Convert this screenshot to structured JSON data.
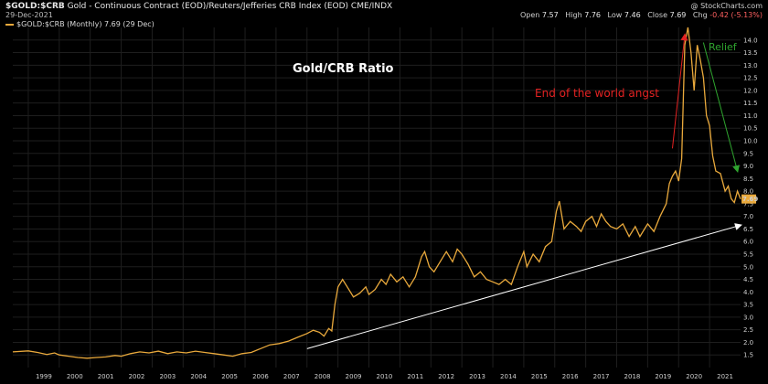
{
  "header": {
    "symbol": "$GOLD:$CRB",
    "description": "Gold - Continuous Contract (EOD)/Reuters/Jefferies CRB Index (EOD) CME/INDX",
    "date": "29-Dec-2021",
    "brand": "@ StockCharts.com",
    "open_label": "Open",
    "open": "7.57",
    "high_label": "High",
    "high": "7.76",
    "low_label": "Low",
    "low": "7.46",
    "close_label": "Close",
    "close": "7.69",
    "chg_label": "Chg",
    "chg": "-0.42 (-5.13%)",
    "legend": "$GOLD:$CRB (Monthly) 7.69 (29 Dec)"
  },
  "colors": {
    "background": "#000000",
    "series": "#e9a93c",
    "trendline": "#ffffff",
    "red_arrow": "#e32222",
    "green_arrow": "#2fa52f",
    "last_value_box": "#e9a93c"
  },
  "chart_data": {
    "type": "line",
    "title": "Gold/CRB Ratio",
    "annotations": {
      "red": "End of the world angst",
      "green": "Relief"
    },
    "last_value_label": "7.69",
    "ylim": [
      1.0,
      14.5
    ],
    "y_ticks": [
      "1.5",
      "2.0",
      "2.5",
      "3.0",
      "3.5",
      "4.0",
      "4.5",
      "5.0",
      "5.5",
      "6.0",
      "6.5",
      "7.0",
      "7.5",
      "8.0",
      "8.5",
      "9.0",
      "9.5",
      "10.0",
      "10.5",
      "11.0",
      "11.5",
      "12.0",
      "12.5",
      "13.0",
      "13.5",
      "14.0"
    ],
    "xlim": [
      1998.5,
      2022.0
    ],
    "x_ticks": [
      "1999",
      "2000",
      "2001",
      "2002",
      "2003",
      "2004",
      "2005",
      "2006",
      "2007",
      "2008",
      "2009",
      "2010",
      "2011",
      "2012",
      "2013",
      "2014",
      "2015",
      "2016",
      "2017",
      "2018",
      "2019",
      "2020",
      "2021"
    ],
    "series": [
      {
        "name": "$GOLD:$CRB",
        "points": [
          [
            1998.5,
            1.62
          ],
          [
            1999.0,
            1.66
          ],
          [
            1999.3,
            1.6
          ],
          [
            1999.6,
            1.52
          ],
          [
            1999.85,
            1.58
          ],
          [
            2000.0,
            1.5
          ],
          [
            2000.3,
            1.45
          ],
          [
            2000.6,
            1.4
          ],
          [
            2000.9,
            1.37
          ],
          [
            2001.2,
            1.4
          ],
          [
            2001.5,
            1.42
          ],
          [
            2001.8,
            1.48
          ],
          [
            2002.0,
            1.45
          ],
          [
            2002.3,
            1.55
          ],
          [
            2002.6,
            1.62
          ],
          [
            2002.9,
            1.58
          ],
          [
            2003.2,
            1.65
          ],
          [
            2003.5,
            1.55
          ],
          [
            2003.8,
            1.62
          ],
          [
            2004.1,
            1.58
          ],
          [
            2004.4,
            1.65
          ],
          [
            2004.7,
            1.6
          ],
          [
            2005.0,
            1.55
          ],
          [
            2005.3,
            1.5
          ],
          [
            2005.6,
            1.45
          ],
          [
            2005.9,
            1.55
          ],
          [
            2006.2,
            1.6
          ],
          [
            2006.5,
            1.75
          ],
          [
            2006.8,
            1.9
          ],
          [
            2007.1,
            1.95
          ],
          [
            2007.4,
            2.05
          ],
          [
            2007.7,
            2.2
          ],
          [
            2008.0,
            2.35
          ],
          [
            2008.2,
            2.48
          ],
          [
            2008.4,
            2.4
          ],
          [
            2008.55,
            2.25
          ],
          [
            2008.7,
            2.55
          ],
          [
            2008.8,
            2.45
          ],
          [
            2008.9,
            3.5
          ],
          [
            2009.0,
            4.2
          ],
          [
            2009.15,
            4.5
          ],
          [
            2009.3,
            4.2
          ],
          [
            2009.5,
            3.8
          ],
          [
            2009.7,
            3.95
          ],
          [
            2009.9,
            4.2
          ],
          [
            2010.0,
            3.9
          ],
          [
            2010.2,
            4.1
          ],
          [
            2010.4,
            4.5
          ],
          [
            2010.55,
            4.3
          ],
          [
            2010.7,
            4.7
          ],
          [
            2010.9,
            4.4
          ],
          [
            2011.1,
            4.6
          ],
          [
            2011.3,
            4.2
          ],
          [
            2011.5,
            4.6
          ],
          [
            2011.7,
            5.4
          ],
          [
            2011.8,
            5.6
          ],
          [
            2011.95,
            5.0
          ],
          [
            2012.1,
            4.8
          ],
          [
            2012.3,
            5.2
          ],
          [
            2012.5,
            5.6
          ],
          [
            2012.7,
            5.2
          ],
          [
            2012.85,
            5.7
          ],
          [
            2013.0,
            5.5
          ],
          [
            2013.2,
            5.1
          ],
          [
            2013.4,
            4.6
          ],
          [
            2013.6,
            4.8
          ],
          [
            2013.8,
            4.5
          ],
          [
            2014.0,
            4.4
          ],
          [
            2014.2,
            4.3
          ],
          [
            2014.4,
            4.5
          ],
          [
            2014.6,
            4.3
          ],
          [
            2014.8,
            5.0
          ],
          [
            2015.0,
            5.6
          ],
          [
            2015.1,
            5.0
          ],
          [
            2015.3,
            5.5
          ],
          [
            2015.5,
            5.2
          ],
          [
            2015.7,
            5.8
          ],
          [
            2015.9,
            6.0
          ],
          [
            2016.05,
            7.2
          ],
          [
            2016.15,
            7.6
          ],
          [
            2016.3,
            6.5
          ],
          [
            2016.5,
            6.8
          ],
          [
            2016.7,
            6.6
          ],
          [
            2016.85,
            6.4
          ],
          [
            2017.0,
            6.8
          ],
          [
            2017.2,
            7.0
          ],
          [
            2017.35,
            6.6
          ],
          [
            2017.5,
            7.1
          ],
          [
            2017.65,
            6.8
          ],
          [
            2017.8,
            6.6
          ],
          [
            2018.0,
            6.5
          ],
          [
            2018.2,
            6.7
          ],
          [
            2018.4,
            6.2
          ],
          [
            2018.6,
            6.6
          ],
          [
            2018.75,
            6.2
          ],
          [
            2018.9,
            6.5
          ],
          [
            2019.0,
            6.7
          ],
          [
            2019.2,
            6.4
          ],
          [
            2019.4,
            7.0
          ],
          [
            2019.6,
            7.5
          ],
          [
            2019.7,
            8.3
          ],
          [
            2019.8,
            8.6
          ],
          [
            2019.9,
            8.8
          ],
          [
            2020.0,
            8.4
          ],
          [
            2020.1,
            9.3
          ],
          [
            2020.2,
            13.8
          ],
          [
            2020.3,
            14.5
          ],
          [
            2020.4,
            13.5
          ],
          [
            2020.5,
            12.0
          ],
          [
            2020.6,
            13.8
          ],
          [
            2020.7,
            13.2
          ],
          [
            2020.8,
            12.5
          ],
          [
            2020.9,
            11.0
          ],
          [
            2021.0,
            10.6
          ],
          [
            2021.1,
            9.4
          ],
          [
            2021.2,
            8.8
          ],
          [
            2021.35,
            8.7
          ],
          [
            2021.5,
            8.0
          ],
          [
            2021.6,
            8.2
          ],
          [
            2021.7,
            7.7
          ],
          [
            2021.8,
            7.55
          ],
          [
            2021.9,
            8.0
          ],
          [
            2022.0,
            7.69
          ]
        ]
      }
    ],
    "trendline": {
      "from": [
        2008.0,
        1.75
      ],
      "to": [
        2022.0,
        6.65
      ]
    },
    "red_arrow": {
      "from": [
        2019.8,
        9.7
      ],
      "to": [
        2020.2,
        14.2
      ]
    },
    "green_arrow": {
      "from": [
        2020.8,
        13.9
      ],
      "to": [
        2021.9,
        8.8
      ]
    }
  }
}
